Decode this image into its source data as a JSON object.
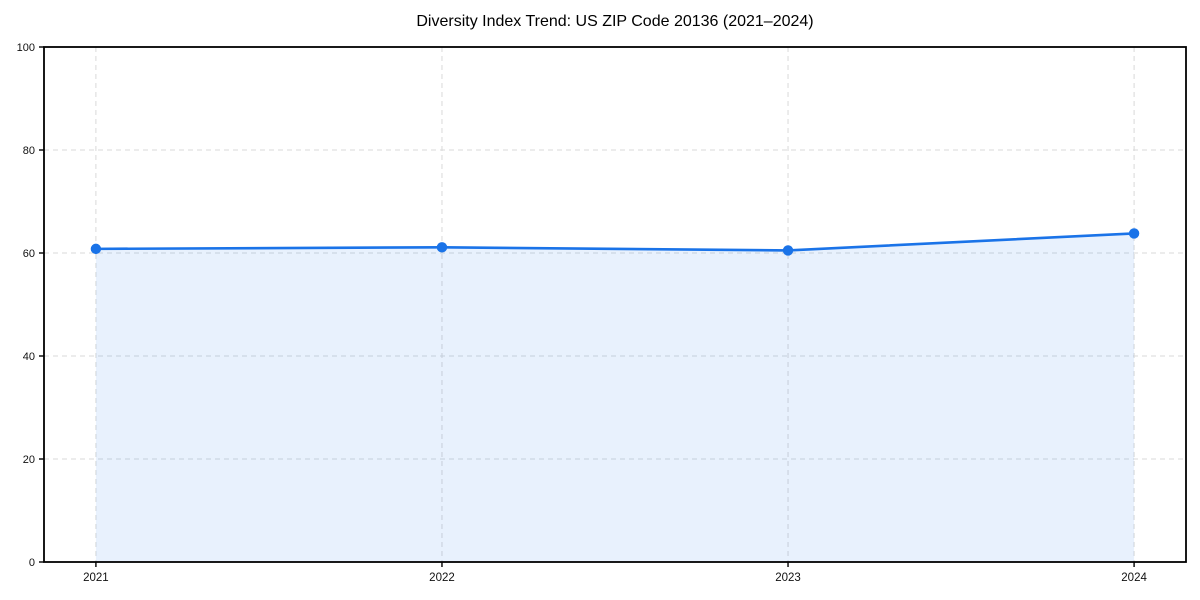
{
  "chart_data": {
    "type": "line",
    "title": "Diversity Index Trend: US ZIP Code 20136 (2021–2024)",
    "x": [
      "2021",
      "2022",
      "2023",
      "2024"
    ],
    "series": [
      {
        "name": "Diversity Index",
        "values": [
          60.8,
          61.1,
          60.5,
          63.8
        ]
      }
    ],
    "xlabel": "",
    "ylabel": "",
    "ylim": [
      0,
      100
    ],
    "yticks": [
      0,
      20,
      40,
      60,
      80,
      100
    ],
    "grid": true,
    "grid_style": "dashed",
    "legend_position": "none",
    "area_fill": true,
    "marker": "circle",
    "colors": {
      "line": "#1a73e8",
      "marker": "#1a73e8",
      "fill": "#1a73e8",
      "fill_opacity": 0.1,
      "grid": "#d9d9d9",
      "spine": "#000000",
      "tick_label": "#111111",
      "title": "#000000",
      "background": "#ffffff"
    }
  }
}
